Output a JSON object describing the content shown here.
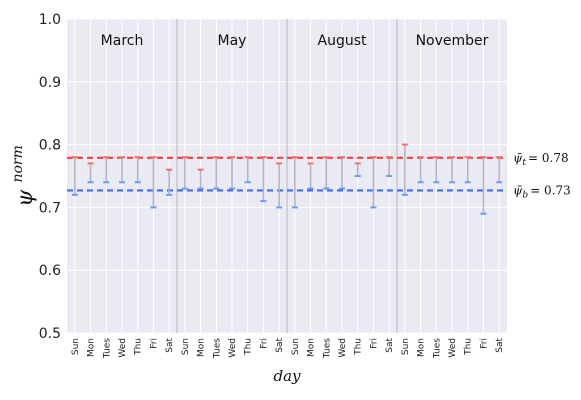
{
  "chart_data": {
    "type": "line",
    "xlabel": "day",
    "ylabel_symbol": "ψ",
    "ylabel_sup": "norm",
    "ylim": [
      0.5,
      1.0
    ],
    "yticks": [
      "0.5",
      "0.6",
      "0.7",
      "0.8",
      "0.9",
      "1.0"
    ],
    "grid": true,
    "days": [
      "Sun",
      "Mon",
      "Tues",
      "Wed",
      "Thu",
      "Fri",
      "Sat"
    ],
    "months": [
      "March",
      "May",
      "August",
      "November"
    ],
    "reference_lines": [
      {
        "label_base": "ψ̄",
        "label_sub": "t",
        "label_value": "= 0.78",
        "value": 0.779,
        "color": "#ff3b3b"
      },
      {
        "label_base": "ψ̄",
        "label_sub": "b",
        "label_value": "= 0.73",
        "value": 0.727,
        "color": "#3b6cff"
      }
    ],
    "top_values": [
      [
        0.78,
        0.77,
        0.78,
        0.78,
        0.78,
        0.78,
        0.76
      ],
      [
        0.78,
        0.76,
        0.78,
        0.78,
        0.78,
        0.78,
        0.77
      ],
      [
        0.78,
        0.77,
        0.78,
        0.78,
        0.77,
        0.78,
        0.78
      ],
      [
        0.8,
        0.78,
        0.78,
        0.78,
        0.78,
        0.78,
        0.78
      ]
    ],
    "bottom_values": [
      [
        0.72,
        0.74,
        0.74,
        0.74,
        0.74,
        0.7,
        0.72
      ],
      [
        0.73,
        0.73,
        0.73,
        0.73,
        0.74,
        0.71,
        0.7
      ],
      [
        0.7,
        0.73,
        0.73,
        0.73,
        0.75,
        0.7,
        0.75
      ],
      [
        0.72,
        0.74,
        0.74,
        0.74,
        0.74,
        0.69,
        0.74
      ]
    ],
    "colors": {
      "top": "#ff6b6b",
      "bottom": "#6b9bff",
      "whisker": "#b3b3bd",
      "background": "#eaeaf2"
    }
  }
}
